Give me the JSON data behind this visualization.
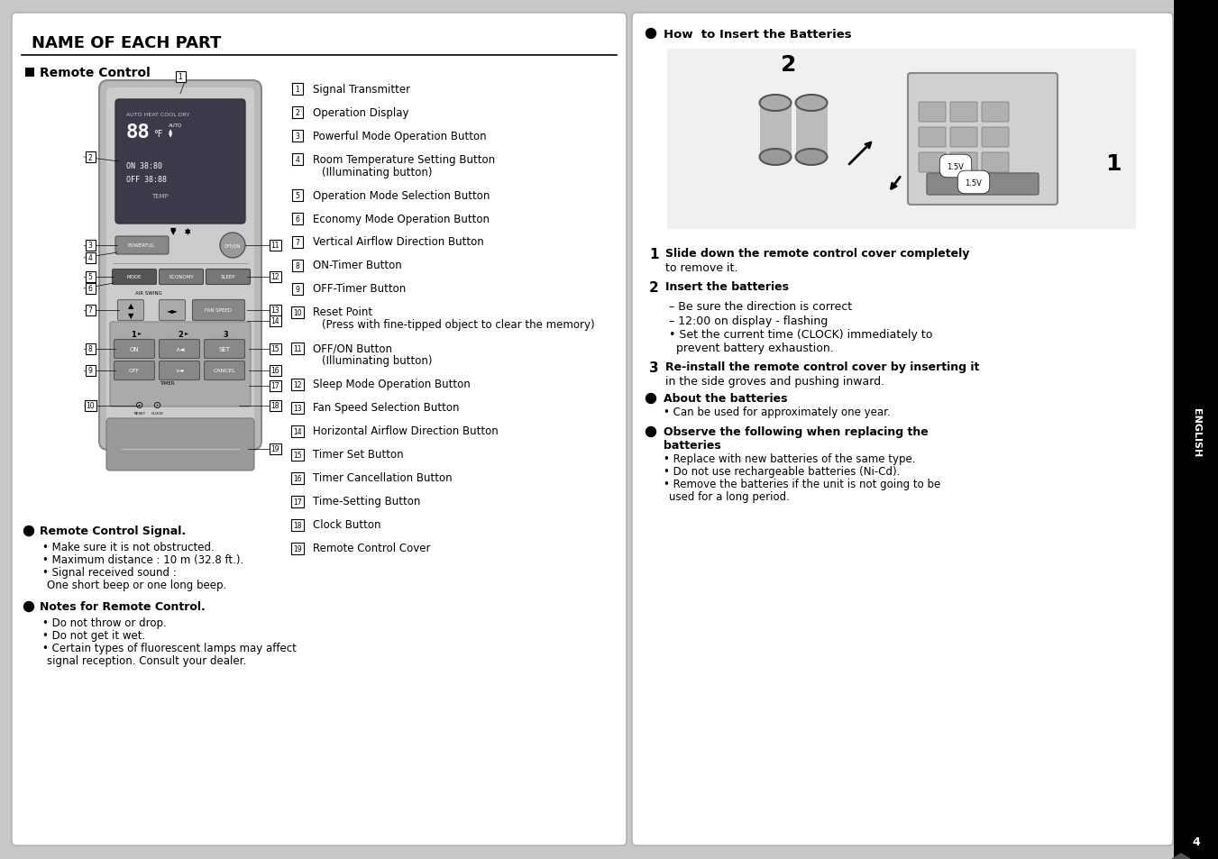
{
  "title": "NAME OF EACH PART",
  "bg_color": "#c8c8c8",
  "panel_bg": "#ffffff",
  "sidebar_bg": "#000000",
  "sidebar_text": "ENGLISH",
  "page_num": "4",
  "section_title": "Remote Control",
  "battery_title": "How  to Insert the Batteries",
  "numbered_items_left": [
    [
      "1",
      "Signal Transmitter"
    ],
    [
      "2",
      "Operation Display"
    ],
    [
      "3",
      "Powerful Mode Operation Button"
    ],
    [
      "4",
      "Room Temperature Setting Button\n(Illuminating button)"
    ],
    [
      "5",
      "Operation Mode Selection Button"
    ],
    [
      "6",
      "Economy Mode Operation Button"
    ],
    [
      "7",
      "Vertical Airflow Direction Button"
    ],
    [
      "8",
      "ON-Timer Button"
    ],
    [
      "9",
      "OFF-Timer Button"
    ],
    [
      "10",
      "Reset Point\n(Press with fine-tipped object to clear the memory)"
    ],
    [
      "11",
      "OFF/ON Button\n(Illuminating button)"
    ],
    [
      "12",
      "Sleep Mode Operation Button"
    ],
    [
      "13",
      "Fan Speed Selection Button"
    ],
    [
      "14",
      "Horizontal Airflow Direction Button"
    ],
    [
      "15",
      "Timer Set Button"
    ],
    [
      "16",
      "Timer Cancellation Button"
    ],
    [
      "17",
      "Time-Setting Button"
    ],
    [
      "18",
      "Clock Button"
    ],
    [
      "19",
      "Remote Control Cover"
    ]
  ],
  "bullet_sections_left": [
    {
      "title": "Remote Control Signal.",
      "items": [
        "Make sure it is not obstructed.",
        "Maximum distance : 10 m (32.8 ft.).",
        "Signal received sound :\n  One short beep or one long beep."
      ]
    },
    {
      "title": "Notes for Remote Control.",
      "items": [
        "Do not throw or drop.",
        "Do not get it wet.",
        "Certain types of fluorescent lamps may affect\n  signal reception. Consult your dealer."
      ]
    }
  ],
  "battery_steps": [
    [
      "1",
      true,
      "Slide down the remote control cover completely\nto remove it."
    ],
    [
      "2",
      true,
      "Insert the batteries"
    ],
    [
      "",
      false,
      "– Be sure the direction is correct\n– 12:00 on display - flashing\n• Set the current time (CLOCK) immediately to\n  prevent battery exhaustion."
    ],
    [
      "3",
      true,
      "Re-install the remote control cover by inserting it\nin the side groves and pushing inward."
    ]
  ],
  "bullet_sections_right": [
    {
      "title": "About the batteries",
      "items": [
        "Can be used for approximately one year."
      ]
    },
    {
      "title": "Observe the following when replacing the\nbatteries",
      "items": [
        "Replace with new batteries of the same type.",
        "Do not use rechargeable batteries (Ni-Cd).",
        "Remove the batteries if the unit is not going to be\n  used for a long period."
      ]
    }
  ]
}
